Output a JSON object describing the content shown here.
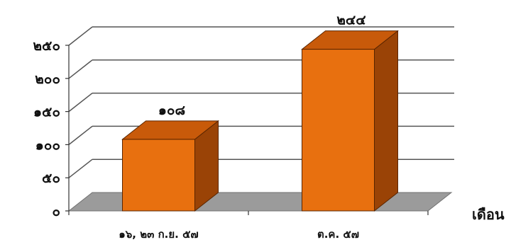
{
  "chart_data": {
    "type": "bar",
    "categories": [
      "๑๖, ๒๓ ก.ย. ๕๗",
      "ต.ค. ๕๗"
    ],
    "values": [
      108,
      244
    ],
    "data_labels": [
      "๑๐๘",
      "๒๔๔"
    ],
    "y_ticks": [
      {
        "value": 0,
        "label": "๐"
      },
      {
        "value": 50,
        "label": "๕๐"
      },
      {
        "value": 100,
        "label": "๑๐๐"
      },
      {
        "value": 150,
        "label": "๑๕๐"
      },
      {
        "value": 200,
        "label": "๒๐๐"
      },
      {
        "value": 250,
        "label": "๒๕๐"
      }
    ],
    "ylim": [
      0,
      250
    ],
    "xlabel": "เดือน",
    "ylabel": "",
    "title": "",
    "grid": true,
    "legend": "none",
    "three_d": true,
    "colors": {
      "bar_front": "#E8700F",
      "bar_top": "#C85A0A",
      "bar_side": "#9A4306",
      "bar_edge": "#5A2500",
      "floor": "#9B9B9B",
      "grid": "#555555"
    }
  }
}
